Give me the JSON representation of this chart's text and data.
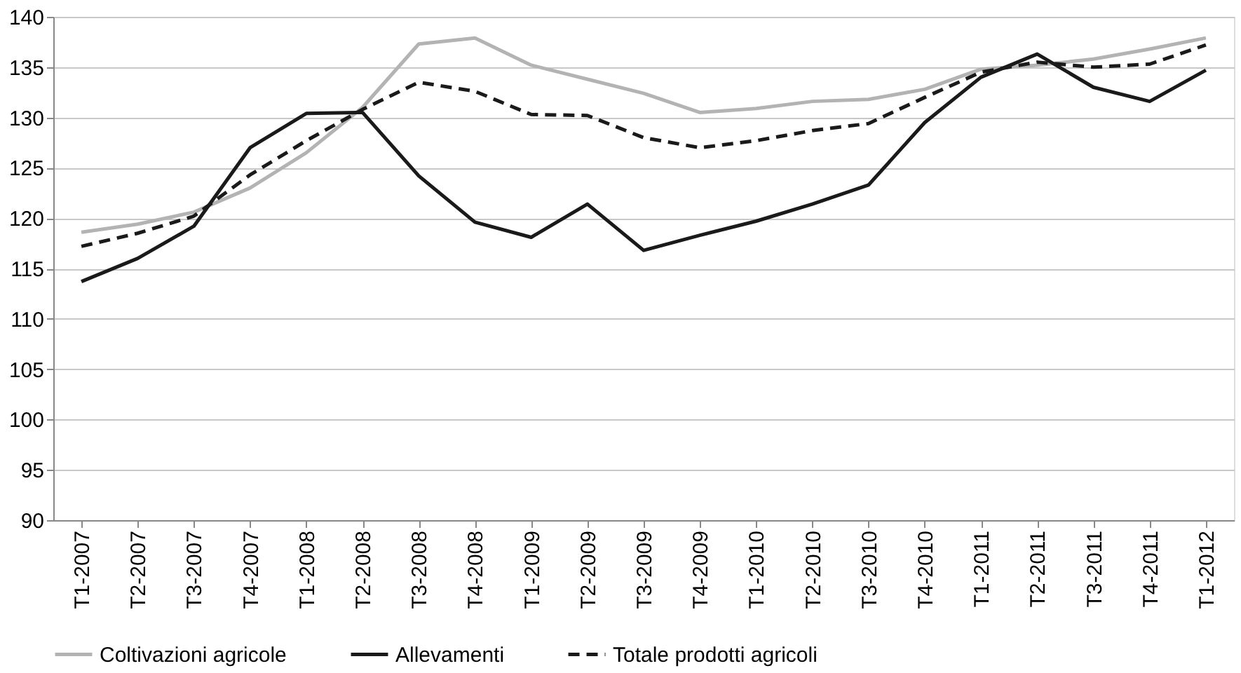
{
  "chart_data": {
    "type": "line",
    "categories": [
      "T1-2007",
      "T2-2007",
      "T3-2007",
      "T4-2007",
      "T1-2008",
      "T2-2008",
      "T3-2008",
      "T4-2008",
      "T1-2009",
      "T2-2009",
      "T3-2009",
      "T4-2009",
      "T1-2010",
      "T2-2010",
      "T3-2010",
      "T4-2010",
      "T1-2011",
      "T2-2011",
      "T3-2011",
      "T4-2011",
      "T1-2012"
    ],
    "series": [
      {
        "name": "Coltivazioni agricole",
        "color": "#b3b3b3",
        "line_style": "solid",
        "values": [
          118.6,
          119.4,
          120.6,
          123,
          126.5,
          131,
          137.3,
          137.9,
          135.2,
          133.8,
          132.4,
          130.5,
          130.9,
          131.6,
          131.8,
          132.8,
          134.8,
          135.2,
          135.8,
          136.8,
          137.9
        ]
      },
      {
        "name": "Allevamenti",
        "color": "#1a1a1a",
        "line_style": "solid",
        "values": [
          113.7,
          116,
          119.2,
          127,
          130.4,
          130.5,
          124.2,
          119.6,
          118.1,
          121.4,
          116.8,
          118.3,
          119.7,
          121.4,
          123.3,
          129.5,
          134,
          136.3,
          133,
          131.6,
          134.7
        ]
      },
      {
        "name": "Totale prodotti agricoli",
        "color": "#1a1a1a",
        "line_style": "dashed",
        "values": [
          117.2,
          118.5,
          120.2,
          124.3,
          127.7,
          130.8,
          133.5,
          132.6,
          130.3,
          130.2,
          128,
          127,
          127.7,
          128.7,
          129.4,
          132,
          134.5,
          135.5,
          135,
          135.3,
          137.2
        ]
      }
    ],
    "ylim": [
      90,
      140
    ],
    "yticks": [
      90,
      95,
      100,
      105,
      110,
      115,
      120,
      125,
      130,
      135,
      140
    ],
    "grid": "y",
    "legend": "bottom",
    "marker": "none"
  }
}
